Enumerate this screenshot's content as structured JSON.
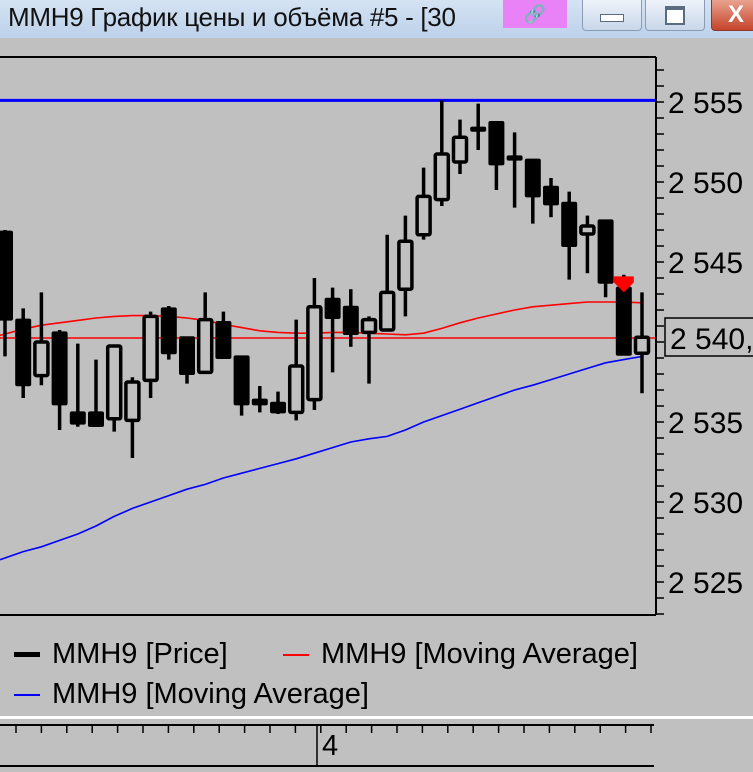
{
  "window": {
    "title": "MMH9 График цены и объёма #5 - [30",
    "link_icon": "link-icon",
    "minimize_icon": "minimize-icon",
    "maximize_icon": "maximize-icon",
    "close_icon": "close-icon",
    "close_glyph": "X",
    "link_glyph": "🔗",
    "link_badge_color": "#e882f6"
  },
  "chart_data": {
    "type": "candlestick",
    "ylim": [
      2522.9,
      2557.9
    ],
    "y_ticks": [
      2555,
      2550,
      2545,
      2540,
      2535,
      2530,
      2525
    ],
    "y_tick_labels": [
      "2 555",
      "2 550",
      "2 545",
      "2 540",
      "2 535",
      "2 530",
      "2 525"
    ],
    "current_price_label": "2 540,",
    "current_price": 2540.25,
    "max_price_line": 2555.1,
    "x_tick_label": "4",
    "grid": false,
    "legend_placement": "bottom",
    "colors": {
      "price": "#000000",
      "ma_red": "#ff0000",
      "ma_blue": "#0000ff",
      "marker": "#ff0000",
      "background": "#c0c0c0"
    },
    "candles": [
      {
        "o": 2546.9,
        "h": 2547.0,
        "l": 2539.1,
        "c": 2541.4
      },
      {
        "o": 2541.4,
        "h": 2542.1,
        "l": 2536.5,
        "c": 2537.3
      },
      {
        "o": 2537.9,
        "h": 2543.1,
        "l": 2537.3,
        "c": 2540.0
      },
      {
        "o": 2540.6,
        "h": 2540.75,
        "l": 2534.5,
        "c": 2536.1
      },
      {
        "o": 2535.6,
        "h": 2539.9,
        "l": 2534.7,
        "c": 2534.9
      },
      {
        "o": 2535.6,
        "h": 2538.9,
        "l": 2534.7,
        "c": 2534.75
      },
      {
        "o": 2535.2,
        "h": 2539.75,
        "l": 2534.4,
        "c": 2539.75
      },
      {
        "o": 2535.1,
        "h": 2537.8,
        "l": 2532.75,
        "c": 2537.5
      },
      {
        "o": 2537.6,
        "h": 2541.9,
        "l": 2536.5,
        "c": 2541.6
      },
      {
        "o": 2542.1,
        "h": 2542.25,
        "l": 2538.9,
        "c": 2539.3
      },
      {
        "o": 2540.3,
        "h": 2540.3,
        "l": 2537.4,
        "c": 2538.0
      },
      {
        "o": 2538.1,
        "h": 2543.1,
        "l": 2538.1,
        "c": 2541.4
      },
      {
        "o": 2541.25,
        "h": 2541.9,
        "l": 2539.0,
        "c": 2539.0
      },
      {
        "o": 2539.1,
        "h": 2539.1,
        "l": 2535.4,
        "c": 2536.1
      },
      {
        "o": 2536.4,
        "h": 2537.25,
        "l": 2535.6,
        "c": 2536.1
      },
      {
        "o": 2536.2,
        "h": 2536.9,
        "l": 2535.5,
        "c": 2535.6
      },
      {
        "o": 2535.6,
        "h": 2541.4,
        "l": 2535.1,
        "c": 2538.5
      },
      {
        "o": 2536.4,
        "h": 2544.0,
        "l": 2535.75,
        "c": 2542.2
      },
      {
        "o": 2542.7,
        "h": 2543.4,
        "l": 2538.1,
        "c": 2541.5
      },
      {
        "o": 2542.2,
        "h": 2543.3,
        "l": 2539.7,
        "c": 2540.5
      },
      {
        "o": 2540.6,
        "h": 2541.6,
        "l": 2537.4,
        "c": 2541.4
      },
      {
        "o": 2540.75,
        "h": 2546.7,
        "l": 2540.75,
        "c": 2543.1
      },
      {
        "o": 2543.3,
        "h": 2547.9,
        "l": 2541.6,
        "c": 2546.3
      },
      {
        "o": 2546.7,
        "h": 2550.9,
        "l": 2546.4,
        "c": 2549.1
      },
      {
        "o": 2548.9,
        "h": 2555.1,
        "l": 2548.5,
        "c": 2551.75
      },
      {
        "o": 2551.25,
        "h": 2553.9,
        "l": 2550.5,
        "c": 2552.8
      },
      {
        "o": 2553.4,
        "h": 2554.9,
        "l": 2552.0,
        "c": 2553.2
      },
      {
        "o": 2553.75,
        "h": 2553.75,
        "l": 2549.5,
        "c": 2551.1
      },
      {
        "o": 2551.6,
        "h": 2553.1,
        "l": 2548.4,
        "c": 2551.4
      },
      {
        "o": 2551.4,
        "h": 2551.4,
        "l": 2547.4,
        "c": 2549.1
      },
      {
        "o": 2549.7,
        "h": 2550.25,
        "l": 2547.8,
        "c": 2548.6
      },
      {
        "o": 2548.7,
        "h": 2549.4,
        "l": 2543.9,
        "c": 2546.0
      },
      {
        "o": 2546.75,
        "h": 2547.9,
        "l": 2544.3,
        "c": 2547.25
      },
      {
        "o": 2547.6,
        "h": 2547.6,
        "l": 2542.8,
        "c": 2543.7
      },
      {
        "o": 2543.4,
        "h": 2544.2,
        "l": 2539.2,
        "c": 2539.2
      },
      {
        "o": 2539.3,
        "h": 2543.1,
        "l": 2536.8,
        "c": 2540.3
      }
    ],
    "series": [
      {
        "name": "MMH9 [Moving Average]",
        "color": "#ff0000",
        "values": [
          2540.5,
          2540.8,
          2541.05,
          2541.2,
          2541.35,
          2541.5,
          2541.6,
          2541.65,
          2541.65,
          2541.6,
          2541.5,
          2541.35,
          2541.1,
          2540.9,
          2540.7,
          2540.6,
          2540.55,
          2540.55,
          2540.6,
          2540.6,
          2540.55,
          2540.5,
          2540.45,
          2540.55,
          2540.85,
          2541.2,
          2541.5,
          2541.75,
          2542.0,
          2542.2,
          2542.3,
          2542.4,
          2542.5,
          2542.5,
          2542.5,
          2542.45
        ]
      },
      {
        "name": "MMH9 [Moving Average]",
        "color": "#0000ff",
        "values": [
          2526.5,
          2526.9,
          2527.2,
          2527.6,
          2528.0,
          2528.5,
          2529.1,
          2529.6,
          2530.0,
          2530.4,
          2530.8,
          2531.1,
          2531.5,
          2531.8,
          2532.1,
          2532.4,
          2532.7,
          2533.05,
          2533.4,
          2533.75,
          2533.95,
          2534.1,
          2534.5,
          2535.0,
          2535.4,
          2535.8,
          2536.2,
          2536.6,
          2537.0,
          2537.3,
          2537.65,
          2538.0,
          2538.35,
          2538.7,
          2538.9,
          2539.1
        ]
      }
    ],
    "markers": [
      {
        "candle_index": 34,
        "type": "sell-triangle",
        "price": 2544.1
      }
    ]
  },
  "legend": {
    "items": [
      {
        "label": "MMH9 [Price]",
        "color": "#000000"
      },
      {
        "label": "MMH9 [Moving Average]",
        "color": "#ff0000"
      },
      {
        "label": "MMH9 [Moving Average]",
        "color": "#0000ff"
      }
    ]
  }
}
